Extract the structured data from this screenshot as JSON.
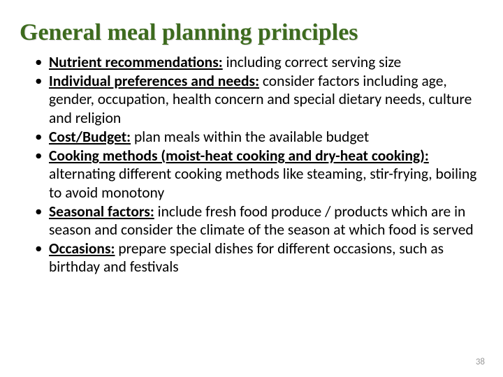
{
  "title": "General meal planning principles",
  "title_color": "#3d6b1e",
  "title_fontsize": 34,
  "body_fontsize": 21.5,
  "body_color": "#000000",
  "background_color": "#ffffff",
  "page_number": "38",
  "bullets": [
    {
      "label": "Nutrient recommendations:",
      "text": " including correct serving size"
    },
    {
      "label": "Individual preferences and needs:",
      "text": " consider factors including age, gender, occupation, health concern and special dietary needs, culture and religion"
    },
    {
      "label": "Cost/Budget:",
      "text": " plan meals within the available budget"
    },
    {
      "label": "Cooking methods (moist-heat cooking and dry-heat cooking):",
      "text": " alternating different cooking methods like steaming, stir-frying, boiling to avoid monotony"
    },
    {
      "label": "Seasonal factors:",
      "text": " include fresh food produce / products which are in season and consider the climate of the season at which food is served"
    },
    {
      "label": "Occasions:",
      "text": " prepare special dishes for different occasions, such as birthday and festivals"
    }
  ]
}
